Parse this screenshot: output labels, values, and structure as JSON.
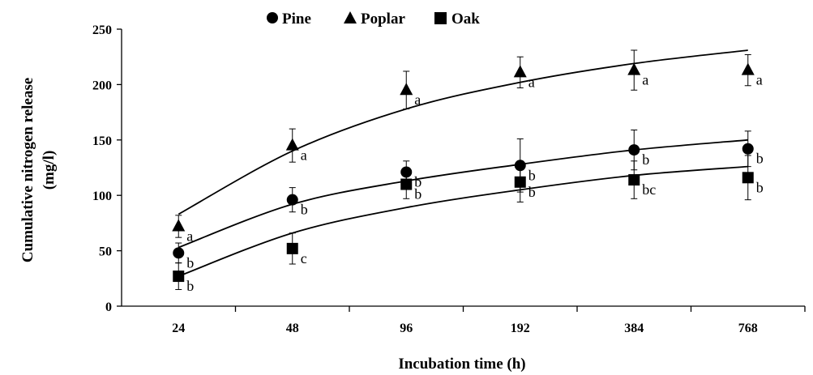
{
  "chart_data": {
    "type": "scatter",
    "title": "",
    "xlabel": "Incubation time (h)",
    "ylabel": "Cumulative nitrogen release",
    "ylabel_units": "(mg/l)",
    "categories": [
      "24",
      "48",
      "96",
      "192",
      "384",
      "768"
    ],
    "ylim": [
      0,
      250
    ],
    "yticks": [
      "0",
      "50",
      "100",
      "150",
      "200",
      "250"
    ],
    "legend_position": "top",
    "grid": false,
    "series": [
      {
        "name": "Pine",
        "marker": "circle",
        "values": [
          48,
          96,
          121,
          127,
          141,
          142
        ],
        "errors": [
          9,
          11,
          10,
          24,
          18,
          16
        ],
        "letters": [
          "b",
          "b",
          "b",
          "b",
          "b",
          "b"
        ],
        "fit": [
          53,
          92,
          113,
          128,
          141,
          150
        ]
      },
      {
        "name": "Poplar",
        "marker": "triangle",
        "values": [
          72,
          145,
          195,
          211,
          213,
          213
        ],
        "errors": [
          10,
          15,
          17,
          14,
          18,
          14
        ],
        "letters": [
          "a",
          "a",
          "a",
          "a",
          "a",
          "a"
        ],
        "fit": [
          83,
          140,
          178,
          202,
          219,
          231
        ]
      },
      {
        "name": "Oak",
        "marker": "square",
        "values": [
          27,
          52,
          110,
          112,
          114,
          116
        ],
        "errors": [
          12,
          14,
          13,
          18,
          17,
          20
        ],
        "letters": [
          "b",
          "c",
          "b",
          "b",
          "bc",
          "b"
        ],
        "fit": [
          27,
          66,
          89,
          105,
          118,
          126
        ]
      }
    ]
  }
}
